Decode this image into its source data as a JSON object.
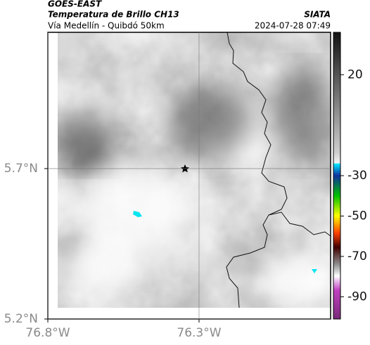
{
  "header": {
    "source": "GOES-EAST",
    "product": "Temperatura de Brillo CH13",
    "region": "Vía Medellín - Quibdó 50km",
    "org": "SIATA",
    "datetime": "2024-07-28 07:49"
  },
  "map": {
    "xlim": [
      -76.8,
      -75.865
    ],
    "ylim": [
      5.2,
      6.153
    ],
    "xticks": [
      {
        "value": -76.8,
        "label": "76.8°W"
      },
      {
        "value": -76.3,
        "label": "76.3°W"
      }
    ],
    "yticks": [
      {
        "value": 5.2,
        "label": "5.2°N"
      },
      {
        "value": 5.7,
        "label": "5.7°N"
      }
    ]
  },
  "colorbar": {
    "lim": [
      -101,
      41
    ],
    "ticks": [
      20,
      -30,
      -50,
      -70,
      -90
    ]
  }
}
